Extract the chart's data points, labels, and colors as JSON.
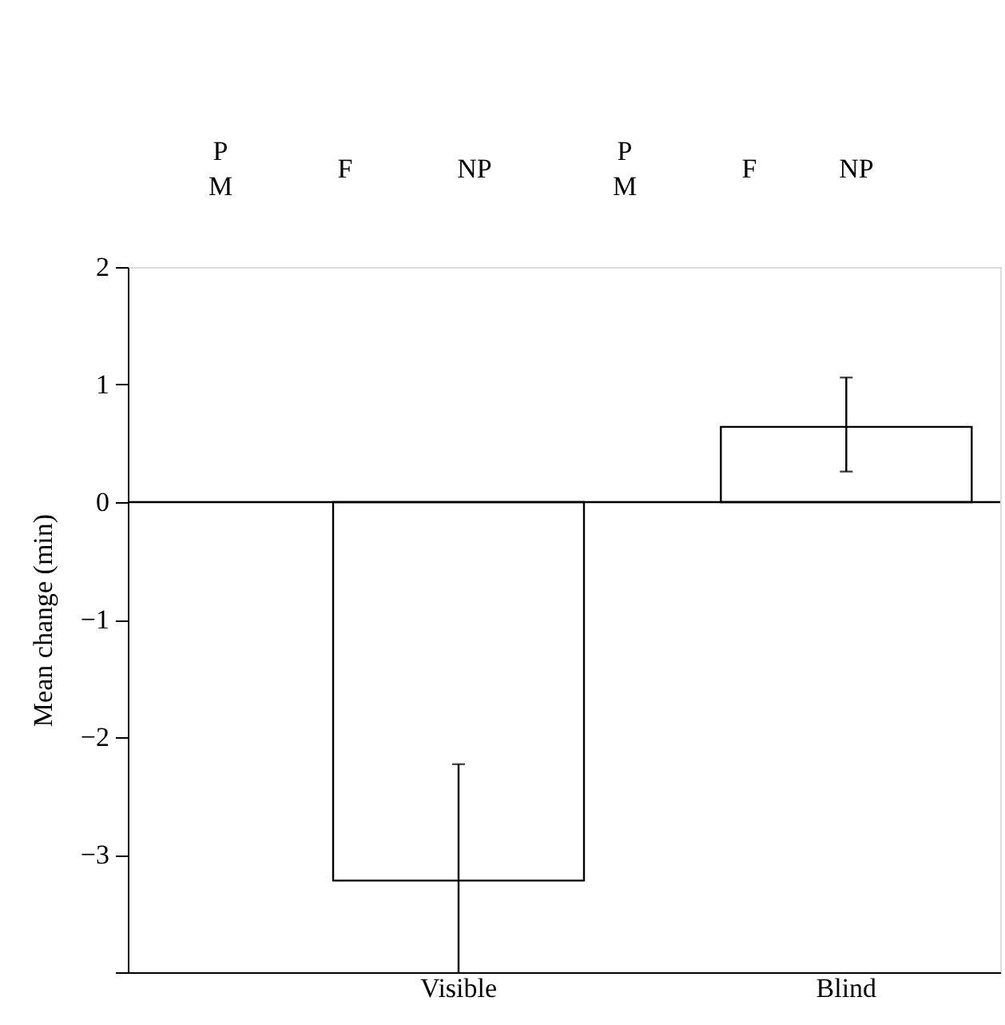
{
  "chart_data": {
    "type": "bar",
    "ylabel": "Mean change (min)",
    "categories": [
      "Visible",
      "Blind"
    ],
    "values": [
      -3.22,
      0.64
    ],
    "errors": [
      [
        -4,
        -2.23
      ],
      [
        0.26,
        1.06
      ]
    ],
    "color": "#ffffff",
    "ylim": [
      -4,
      2
    ],
    "yticks": [
      {
        "value": -4,
        "label": null
      },
      -3,
      -2,
      -1,
      0,
      1,
      2
    ],
    "ref_lines": [
      {
        "axis": "y",
        "value": 0,
        "color": "#000000"
      }
    ],
    "annotations": [
      "P",
      "M",
      "F",
      "NP",
      "P",
      "M",
      "F",
      "NP"
    ],
    "grid": false
  }
}
